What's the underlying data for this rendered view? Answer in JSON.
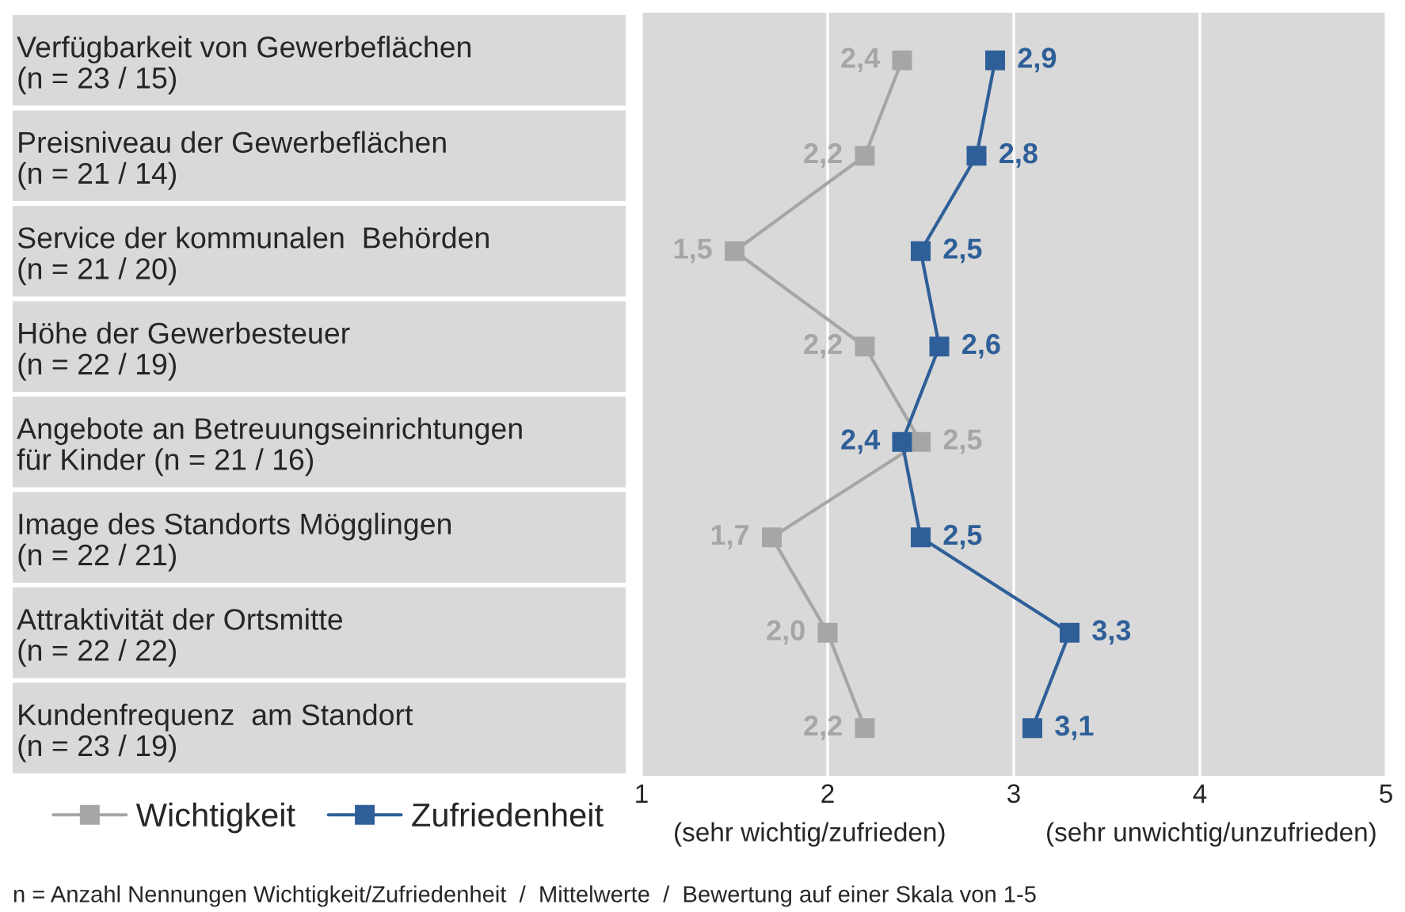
{
  "chart_data": {
    "type": "line",
    "orientation": "horizontal",
    "categories": [
      "Verfügbarkeit von Gewerbeflächen\n(n = 23 / 15)",
      "Preisniveau der Gewerbeflächen\n(n = 21 / 14)",
      "Service der kommunalen  Behörden\n(n = 21 / 20)",
      "Höhe der Gewerbesteuer\n(n = 22 / 19)",
      "Angebote an Betreuungseinrichtungen\nfür Kinder (n = 21 / 16)",
      "Image des Standorts Mögglingen\n(n = 22 / 21)",
      "Attraktivität der Ortsmitte\n(n = 22 / 22)",
      "Kundenfrequenz  am Standort\n(n = 23 / 19)"
    ],
    "series": [
      {
        "name": "Wichtigkeit",
        "color": "#a6a6a6",
        "values": [
          2.4,
          2.2,
          1.5,
          2.2,
          2.5,
          1.7,
          2.0,
          2.2
        ],
        "value_labels": [
          "2,4",
          "2,2",
          "1,5",
          "2,2",
          "2,5",
          "1,7",
          "2,0",
          "2,2"
        ]
      },
      {
        "name": "Zufriedenheit",
        "color": "#2f5f98",
        "values": [
          2.9,
          2.8,
          2.5,
          2.6,
          2.4,
          2.5,
          3.3,
          3.1
        ],
        "value_labels": [
          "2,9",
          "2,8",
          "2,5",
          "2,6",
          "2,4",
          "2,5",
          "3,3",
          "3,1"
        ]
      }
    ],
    "xlim": [
      1,
      5
    ],
    "xticks": [
      1,
      2,
      3,
      4,
      5
    ],
    "grid": "x",
    "marker": "square",
    "line_style": "solid",
    "legend": "bottom left",
    "annotations": [
      "(sehr wichtig/zufrieden)",
      "(sehr unwichtig/unzufrieden)",
      "n = Anzahl Nennungen Wichtigkeit/Zufriedenheit  /  Mittelwerte  /  Bewertung auf einer Skala von 1-5"
    ]
  }
}
